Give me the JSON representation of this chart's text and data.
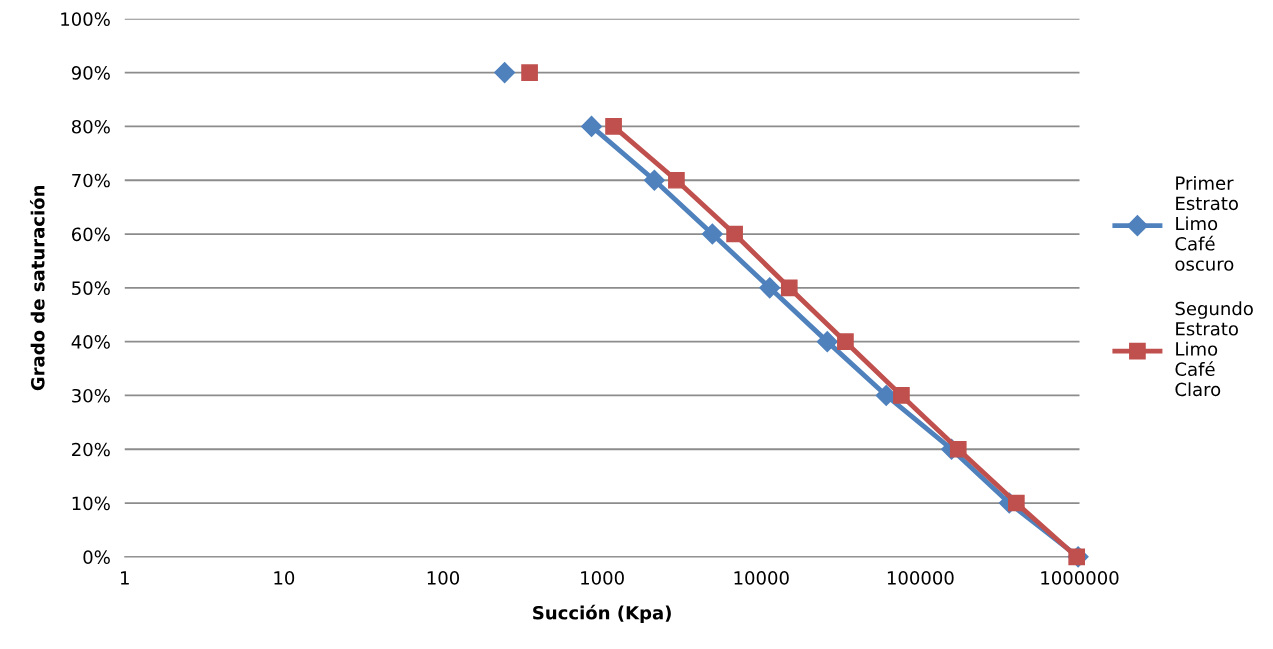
{
  "chart_data": {
    "type": "line",
    "xlabel": "Succión (Kpa)",
    "ylabel": "Grado de saturación",
    "log": "x",
    "xlim": [
      1,
      1000000
    ],
    "xticks": [
      1,
      10,
      100,
      1000,
      10000,
      100000,
      1000000
    ],
    "ylim": [
      0,
      100
    ],
    "yticks": [
      {
        "value": 0,
        "label": "0%"
      },
      {
        "value": 10,
        "label": "10%"
      },
      {
        "value": 20,
        "label": "20%"
      },
      {
        "value": 30,
        "label": "30%"
      },
      {
        "value": 40,
        "label": "40%"
      },
      {
        "value": 50,
        "label": "50%"
      },
      {
        "value": 60,
        "label": "60%"
      },
      {
        "value": 70,
        "label": "70%"
      },
      {
        "value": 80,
        "label": "80%"
      },
      {
        "value": 90,
        "label": "90%"
      },
      {
        "value": 100,
        "label": "100%"
      }
    ],
    "grid": "y",
    "legend": "right",
    "line_style": "solid",
    "series": [
      {
        "name": "Primer Estrato Limo Café oscuro",
        "color": "#4f81bd",
        "marker": "diamond",
        "x": [
          244,
          500,
          858,
          2130,
          4930,
          11300,
          26000,
          61000,
          157000,
          362000,
          980000
        ],
        "values": [
          90,
          null,
          80,
          70,
          60,
          50,
          40,
          30,
          20,
          10,
          0
        ]
      },
      {
        "name": "Segundo Estrato Limo Café Claro",
        "color": "#c0504d",
        "marker": "square",
        "x": [
          350,
          700,
          1180,
          2930,
          6800,
          15000,
          33800,
          76000,
          173000,
          401000,
          960000
        ],
        "values": [
          90,
          null,
          80,
          70,
          60,
          50,
          40,
          30,
          20,
          10,
          0
        ]
      }
    ]
  }
}
